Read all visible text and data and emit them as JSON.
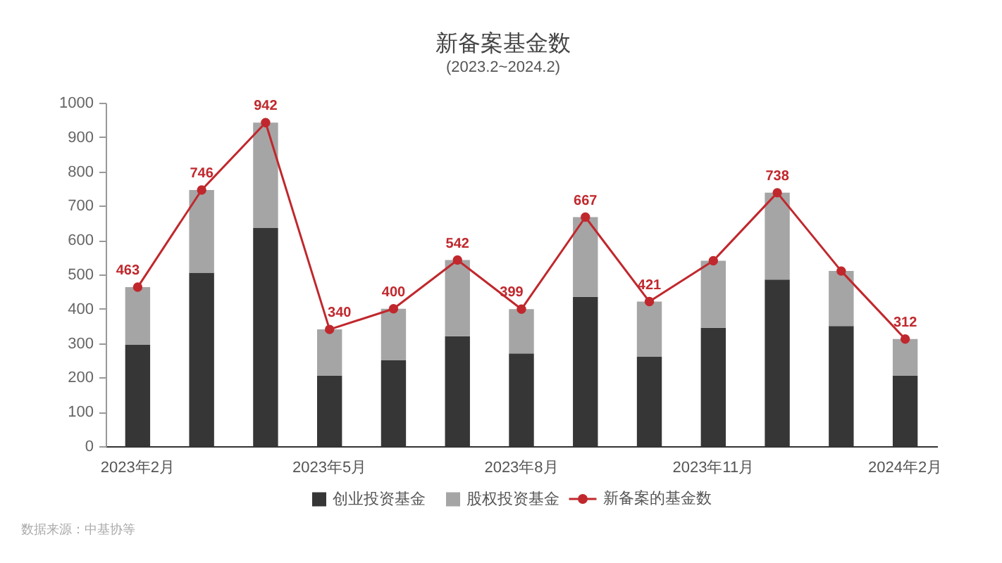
{
  "chart_data": {
    "type": "bar",
    "title": "新备案基金数",
    "subtitle": "(2023.2~2024.2)",
    "categories": [
      "2023年2月",
      null,
      null,
      "2023年5月",
      null,
      null,
      "2023年8月",
      null,
      null,
      "2023年11月",
      null,
      null,
      "2024年2月"
    ],
    "stacked": true,
    "series": [
      {
        "name": "创业投资基金",
        "color": "#363636",
        "values": [
          295,
          505,
          635,
          205,
          250,
          320,
          270,
          435,
          260,
          345,
          485,
          350,
          205
        ]
      },
      {
        "name": "股权投资基金",
        "color": "#a5a5a5",
        "values": [
          168,
          241,
          307,
          135,
          150,
          222,
          129,
          232,
          161,
          195,
          253,
          160,
          107
        ]
      },
      {
        "name": "新备案的基金数",
        "type": "line",
        "color": "#c0282d",
        "values": [
          463,
          746,
          942,
          340,
          400,
          542,
          399,
          667,
          421,
          540,
          738,
          510,
          312
        ],
        "value_labels": [
          "463",
          "746",
          "942",
          "340",
          "400",
          "542",
          "399",
          "667",
          "421",
          null,
          "738",
          null,
          "312"
        ]
      }
    ],
    "ylim": [
      0,
      1000
    ],
    "yticks": [
      0,
      100,
      200,
      300,
      400,
      500,
      600,
      700,
      800,
      900,
      1000
    ],
    "grid": false,
    "legend": "bottom",
    "marker": "circle",
    "line_style": "solid",
    "annotations": [
      "数据来源：中基协等"
    ]
  }
}
